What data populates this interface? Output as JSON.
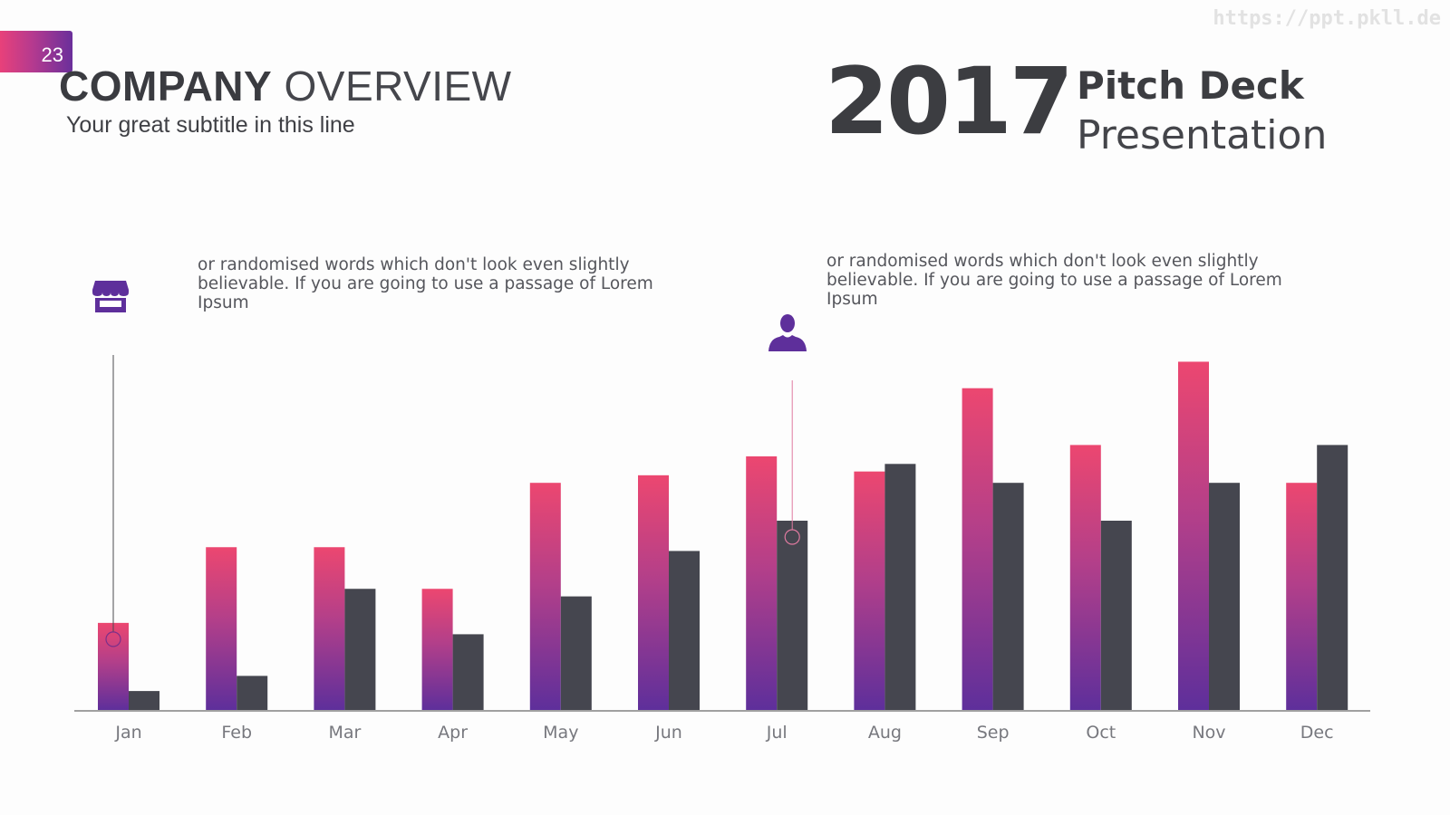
{
  "watermark": "https://ppt.pkll.de",
  "page_number": "23",
  "header": {
    "title_bold": "COMPANY",
    "title_light": "OVERVIEW",
    "subtitle": "Your great subtitle in this line"
  },
  "branding": {
    "year": "2017",
    "deck_title": "Pitch Deck",
    "deck_subtitle": "Presentation"
  },
  "callouts": [
    {
      "icon": "store-icon",
      "text": "or randomised words which don't look even slightly believable. If you are going to use a passage of Lorem Ipsum",
      "category": "Jan",
      "series": 0
    },
    {
      "icon": "user-icon",
      "text": "or randomised words which don't look even slightly believable. If you are going to use a passage of Lorem Ipsum",
      "category": "Jul",
      "series": 1
    }
  ],
  "colors": {
    "gradient_top": "#ec4770",
    "gradient_bottom": "#5e2f9b",
    "dark_bar": "#45464f",
    "icon": "#5e2f9b",
    "axis": "#6a6a6a"
  },
  "chart_data": {
    "type": "bar",
    "categories": [
      "Jan",
      "Feb",
      "Mar",
      "Apr",
      "May",
      "Jun",
      "Jul",
      "Aug",
      "Sep",
      "Oct",
      "Nov",
      "Dec"
    ],
    "series": [
      {
        "values": [
          23,
          43,
          43,
          32,
          60,
          62,
          67,
          63,
          85,
          70,
          92,
          60
        ]
      },
      {
        "values": [
          5,
          9,
          32,
          20,
          30,
          42,
          50,
          65,
          60,
          50,
          60,
          70
        ]
      }
    ],
    "ylim": [
      0,
      100
    ],
    "grid": false,
    "legend": "none"
  }
}
